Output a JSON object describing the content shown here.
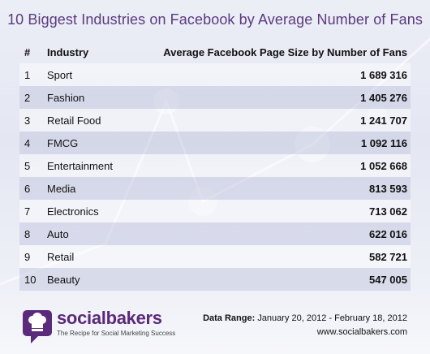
{
  "title": "10 Biggest Industries on Facebook by Average Number of Fans",
  "columns": {
    "rank": "#",
    "industry": "Industry",
    "value": "Average Facebook Page Size by Number of Fans"
  },
  "rows": [
    {
      "rank": "1",
      "industry": "Sport",
      "value": "1 689 316"
    },
    {
      "rank": "2",
      "industry": "Fashion",
      "value": "1 405 276"
    },
    {
      "rank": "3",
      "industry": "Retail Food",
      "value": "1 241 707"
    },
    {
      "rank": "4",
      "industry": "FMCG",
      "value": "1 092 116"
    },
    {
      "rank": "5",
      "industry": "Entertainment",
      "value": "1 052 668"
    },
    {
      "rank": "6",
      "industry": "Media",
      "value": "813 593"
    },
    {
      "rank": "7",
      "industry": "Electronics",
      "value": "713 062"
    },
    {
      "rank": "8",
      "industry": "Auto",
      "value": "622 016"
    },
    {
      "rank": "9",
      "industry": "Retail",
      "value": "582 721"
    },
    {
      "rank": "10",
      "industry": "Beauty",
      "value": "547 005"
    }
  ],
  "footer": {
    "brand": "socialbakers",
    "tagline": "The Recipe for Social Marketing Success",
    "range_label": "Data Range:",
    "range_value": "January 20, 2012 - February 18, 2012",
    "website": "www.socialbakers.com"
  },
  "colors": {
    "title": "#5b3a7e",
    "brand": "#5b2a7a",
    "row_light": "#ebedf5",
    "row_dark": "#c6cbe0"
  },
  "icons": [
    "chef-hat-logo-icon"
  ],
  "chart_data": {
    "type": "table",
    "title": "10 Biggest Industries on Facebook by Average Number of Fans",
    "columns": [
      "#",
      "Industry",
      "Average Facebook Page Size by Number of Fans"
    ],
    "categories": [
      "Sport",
      "Fashion",
      "Retail Food",
      "FMCG",
      "Entertainment",
      "Media",
      "Electronics",
      "Auto",
      "Retail",
      "Beauty"
    ],
    "values": [
      1689316,
      1405276,
      1241707,
      1092116,
      1052668,
      813593,
      713062,
      622016,
      582721,
      547005
    ],
    "grid": false,
    "legend": "none"
  }
}
